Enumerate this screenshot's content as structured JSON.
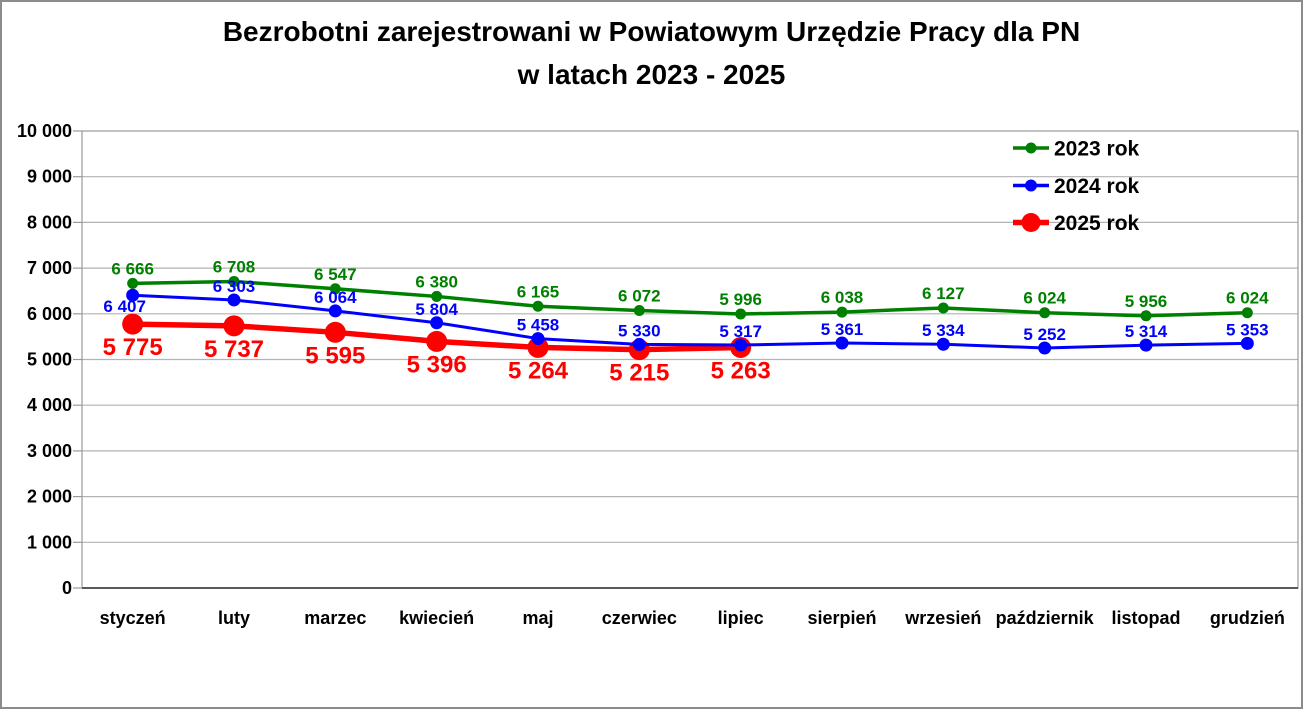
{
  "chart_data": {
    "type": "line",
    "title_line1": "Bezrobotni zarejestrowani w Powiatowym Urzędzie Pracy dla PN",
    "title_line2": "w latach 2023 - 2025",
    "categories": [
      "styczeń",
      "luty",
      "marzec",
      "kwiecień",
      "maj",
      "czerwiec",
      "lipiec",
      "sierpień",
      "wrzesień",
      "październik",
      "listopad",
      "grudzień"
    ],
    "series": [
      {
        "name": "2023 rok",
        "color": "#008000",
        "values": [
          6666,
          6708,
          6547,
          6380,
          6165,
          6072,
          5996,
          6038,
          6127,
          6024,
          5956,
          6024
        ]
      },
      {
        "name": "2024 rok",
        "color": "#0000ff",
        "values": [
          6407,
          6303,
          6064,
          5804,
          5458,
          5330,
          5317,
          5361,
          5334,
          5252,
          5314,
          5353
        ]
      },
      {
        "name": "2025 rok",
        "color": "#ff0000",
        "values": [
          5775,
          5737,
          5595,
          5396,
          5264,
          5215,
          5263,
          null,
          null,
          null,
          null,
          null
        ]
      }
    ],
    "y_axis": {
      "min": 0,
      "max": 10000,
      "step": 1000,
      "tick_labels": [
        "0",
        "1 000",
        "2 000",
        "3 000",
        "4 000",
        "5 000",
        "6 000",
        "7 000",
        "8 000",
        "9 000",
        "10 000"
      ]
    },
    "legend": {
      "position": "top-right",
      "entries": [
        "2023 rok",
        "2024 rok",
        "2025 rok"
      ]
    },
    "grid": true,
    "colors": {
      "grid": "#b3b3b3",
      "plot_border": "#999999",
      "bottom_axis": "#595959",
      "frame_border": "#8c8c8c",
      "text": "#000000"
    }
  }
}
